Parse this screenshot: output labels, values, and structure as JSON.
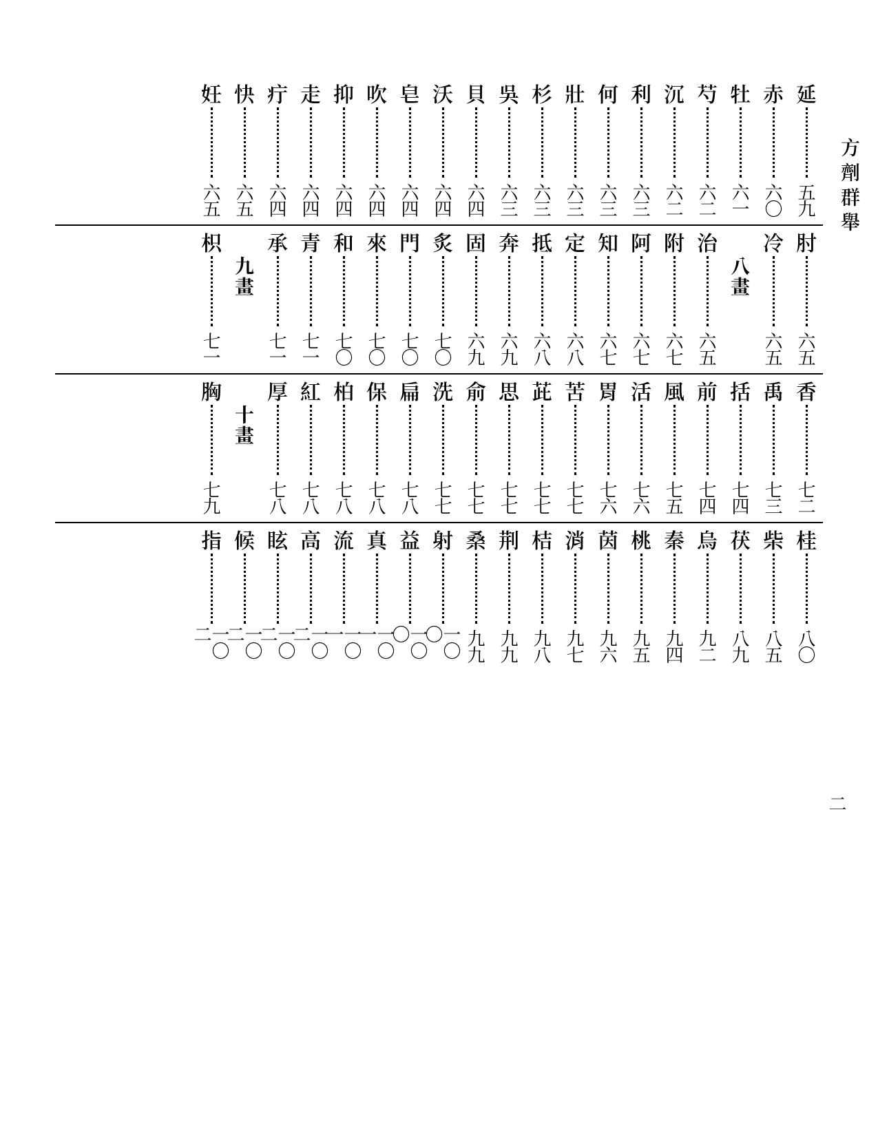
{
  "right_label": "方劑群舉",
  "bottom_marker": "二",
  "sections": [
    {
      "entries": [
        {
          "char": "延",
          "page": "五九"
        },
        {
          "char": "赤",
          "page": "六〇"
        },
        {
          "char": "牡",
          "page": "六一"
        },
        {
          "char": "芍",
          "page": "六二"
        },
        {
          "char": "沉",
          "page": "六二"
        },
        {
          "char": "利",
          "page": "六三"
        },
        {
          "char": "何",
          "page": "六三"
        },
        {
          "char": "壯",
          "page": "六三"
        },
        {
          "char": "杉",
          "page": "六三"
        },
        {
          "char": "吳",
          "page": "六三"
        },
        {
          "char": "貝",
          "page": "六四"
        },
        {
          "char": "沃",
          "page": "六四"
        },
        {
          "char": "皂",
          "page": "六四"
        },
        {
          "char": "吹",
          "page": "六四"
        },
        {
          "char": "抑",
          "page": "六四"
        },
        {
          "char": "走",
          "page": "六四"
        },
        {
          "char": "疔",
          "page": "六四"
        },
        {
          "char": "快",
          "page": "六五"
        },
        {
          "char": "妊",
          "page": "六五"
        }
      ]
    },
    {
      "entries": [
        {
          "char": "肘",
          "page": "六五"
        },
        {
          "char": "冷",
          "page": "六五"
        }
      ],
      "section_label": "八畫",
      "after_label_entries": [
        {
          "char": "治",
          "page": "六五"
        },
        {
          "char": "附",
          "page": "六七"
        },
        {
          "char": "阿",
          "page": "六七"
        },
        {
          "char": "知",
          "page": "六七"
        },
        {
          "char": "定",
          "page": "六八"
        },
        {
          "char": "抵",
          "page": "六八"
        },
        {
          "char": "奔",
          "page": "六九"
        },
        {
          "char": "固",
          "page": "六九"
        },
        {
          "char": "炙",
          "page": "七〇"
        },
        {
          "char": "門",
          "page": "七〇"
        },
        {
          "char": "來",
          "page": "七〇"
        },
        {
          "char": "和",
          "page": "七〇"
        },
        {
          "char": "青",
          "page": "七一"
        },
        {
          "char": "承",
          "page": "七一"
        }
      ],
      "section_label_2": "九畫",
      "after_label_2_entries": [
        {
          "char": "枳",
          "page": "七一"
        }
      ]
    },
    {
      "entries": [
        {
          "char": "香",
          "page": "七二"
        },
        {
          "char": "禹",
          "page": "七三"
        },
        {
          "char": "括",
          "page": "七四"
        },
        {
          "char": "前",
          "page": "七四"
        },
        {
          "char": "風",
          "page": "七五"
        },
        {
          "char": "活",
          "page": "七六"
        },
        {
          "char": "胃",
          "page": "七六"
        },
        {
          "char": "苦",
          "page": "七七"
        },
        {
          "char": "茈",
          "page": "七七"
        },
        {
          "char": "思",
          "page": "七七"
        },
        {
          "char": "俞",
          "page": "七七"
        },
        {
          "char": "洗",
          "page": "七七"
        },
        {
          "char": "扁",
          "page": "七八"
        },
        {
          "char": "保",
          "page": "七八"
        },
        {
          "char": "柏",
          "page": "七八"
        },
        {
          "char": "紅",
          "page": "七八"
        },
        {
          "char": "厚",
          "page": "七八"
        }
      ],
      "section_label_2": "十畫",
      "after_label_2_entries": [
        {
          "char": "胸",
          "page": "七九"
        }
      ]
    },
    {
      "entries": [
        {
          "char": "桂",
          "page": "八〇"
        },
        {
          "char": "柴",
          "page": "八五"
        },
        {
          "char": "茯",
          "page": "八九"
        },
        {
          "char": "烏",
          "page": "九二"
        },
        {
          "char": "秦",
          "page": "九四"
        },
        {
          "char": "桃",
          "page": "九五"
        },
        {
          "char": "茵",
          "page": "九六"
        },
        {
          "char": "消",
          "page": "九七"
        },
        {
          "char": "桔",
          "page": "九八"
        },
        {
          "char": "荆",
          "page": "九九"
        },
        {
          "char": "桑",
          "page": "九九"
        },
        {
          "char": "射",
          "page": "一〇〇"
        },
        {
          "char": "益",
          "page": "一〇〇"
        },
        {
          "char": "真",
          "page": "一〇一"
        },
        {
          "char": "流",
          "page": "一〇一"
        },
        {
          "char": "高",
          "page": "一〇二"
        },
        {
          "char": "眩",
          "page": "一〇二"
        },
        {
          "char": "候",
          "page": "一〇二"
        },
        {
          "char": "指",
          "page": "一〇二"
        }
      ]
    }
  ]
}
